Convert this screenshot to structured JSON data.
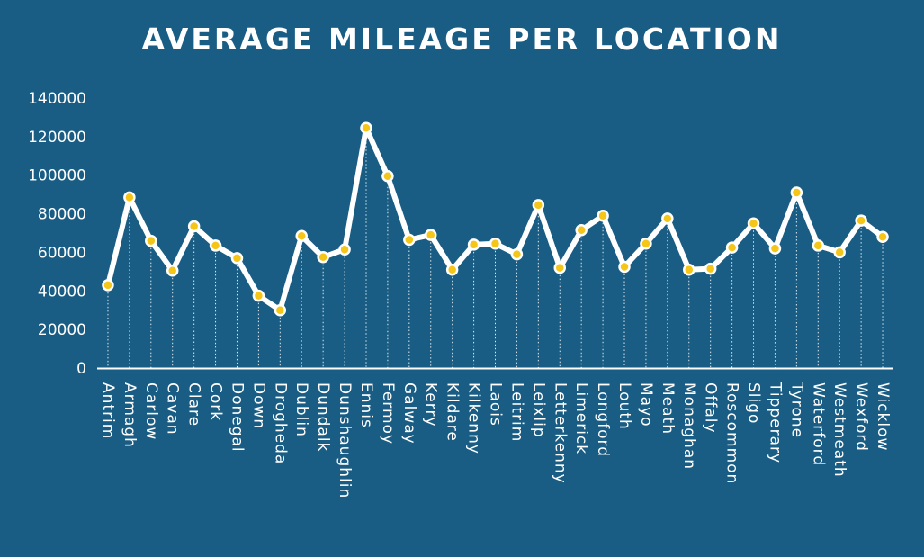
{
  "colors": {
    "background": "#1a5d84",
    "line": "#ffffff",
    "marker_fill": "#f5c518",
    "text": "#ffffff"
  },
  "chart_data": {
    "type": "line",
    "title": "AVERAGE MILEAGE PER LOCATION",
    "xlabel": "",
    "ylabel": "",
    "ylim": [
      0,
      140000
    ],
    "yticks": [
      0,
      20000,
      40000,
      60000,
      80000,
      100000,
      120000,
      140000
    ],
    "grid": false,
    "drop_lines": true,
    "legend": "none",
    "categories": [
      "Antrim",
      "Armagh",
      "Carlow",
      "Cavan",
      "Clare",
      "Cork",
      "Donegal",
      "Down",
      "Drogheda",
      "Dublin",
      "Dundalk",
      "Dunshaughlin",
      "Ennis",
      "Fermoy",
      "Galway",
      "Kerry",
      "Kildare",
      "Kilkenny",
      "Laois",
      "Leitrim",
      "Leixlip",
      "Letterkenny",
      "Limerick",
      "Longford",
      "Louth",
      "Mayo",
      "Meath",
      "Monaghan",
      "Offaly",
      "Roscommon",
      "Sligo",
      "Tipperary",
      "Tyrone",
      "Waterford",
      "Westmeath",
      "Wexford",
      "Wicklow"
    ],
    "series": [
      {
        "values": [
          43000,
          88500,
          66000,
          50500,
          73500,
          63500,
          57000,
          37500,
          30000,
          68500,
          57500,
          61500,
          124500,
          99500,
          66500,
          69000,
          51000,
          64000,
          64500,
          59000,
          84500,
          52000,
          71500,
          79000,
          52500,
          64500,
          77500,
          51000,
          51500,
          62500,
          75000,
          62000,
          91000,
          63500,
          60000,
          76500,
          68000
        ]
      }
    ]
  }
}
